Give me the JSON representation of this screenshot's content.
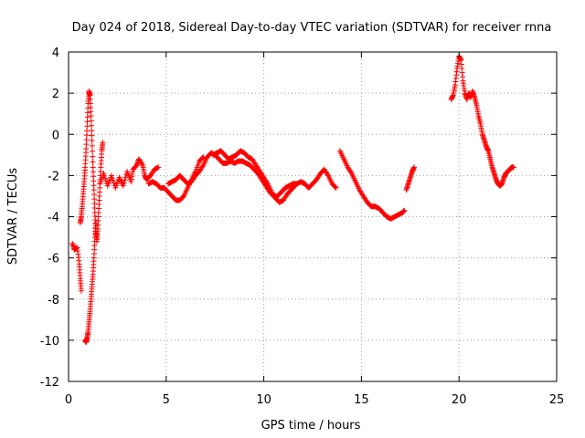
{
  "chart_data": {
    "type": "scatter",
    "title": "Day 024 of 2018, Sidereal Day-to-day VTEC variation (SDTVAR) for receiver rnna",
    "xlabel": "GPS time / hours",
    "ylabel": "SDTVAR / TECUs",
    "xlim": [
      0,
      25
    ],
    "ylim": [
      -12,
      4
    ],
    "xticks": [
      0,
      5,
      10,
      15,
      20,
      25
    ],
    "yticks": [
      4,
      2,
      0,
      -2,
      -4,
      -6,
      -8,
      -10,
      -12
    ],
    "grid": true,
    "marker": "+",
    "marker_color": "#ff0000",
    "series": [
      {
        "name": "SDTVAR",
        "segments": [
          [
            [
              0.2,
              -5.3
            ],
            [
              0.3,
              -5.6
            ],
            [
              0.45,
              -5.5
            ],
            [
              0.55,
              -6.3
            ],
            [
              0.6,
              -7.0
            ],
            [
              0.65,
              -7.6
            ]
          ],
          [
            [
              0.6,
              -4.3
            ],
            [
              0.65,
              -4.0
            ],
            [
              0.7,
              -3.5
            ],
            [
              0.75,
              -2.9
            ],
            [
              0.8,
              -2.3
            ],
            [
              0.85,
              -1.6
            ],
            [
              0.9,
              -0.7
            ],
            [
              0.95,
              0.4
            ],
            [
              1.0,
              1.5
            ],
            [
              1.05,
              2.1
            ],
            [
              1.1,
              1.9
            ],
            [
              1.15,
              0.9
            ],
            [
              1.2,
              -0.3
            ],
            [
              1.25,
              -1.6
            ],
            [
              1.3,
              -2.7
            ],
            [
              1.35,
              -3.8
            ],
            [
              1.4,
              -4.7
            ],
            [
              1.45,
              -5.2
            ],
            [
              1.5,
              -4.6
            ],
            [
              1.55,
              -3.6
            ],
            [
              1.6,
              -2.6
            ],
            [
              1.65,
              -1.6
            ],
            [
              1.7,
              -0.8
            ],
            [
              1.75,
              -0.4
            ]
          ],
          [
            [
              0.85,
              -10.0
            ],
            [
              0.9,
              -10.1
            ],
            [
              0.95,
              -9.9
            ],
            [
              1.0,
              -9.6
            ],
            [
              1.05,
              -9.1
            ],
            [
              1.1,
              -8.6
            ],
            [
              1.15,
              -8.0
            ],
            [
              1.2,
              -7.4
            ],
            [
              1.25,
              -6.8
            ],
            [
              1.3,
              -6.0
            ],
            [
              1.35,
              -5.0
            ],
            [
              1.4,
              -4.3
            ]
          ],
          [
            [
              1.6,
              -2.4
            ],
            [
              1.8,
              -1.9
            ],
            [
              2.0,
              -2.5
            ],
            [
              2.2,
              -2.0
            ],
            [
              2.4,
              -2.6
            ],
            [
              2.6,
              -2.1
            ],
            [
              2.8,
              -2.5
            ],
            [
              3.0,
              -1.8
            ],
            [
              3.2,
              -2.3
            ],
            [
              3.3,
              -1.7
            ],
            [
              3.5,
              -1.5
            ],
            [
              3.6,
              -1.2
            ],
            [
              3.8,
              -1.5
            ],
            [
              3.9,
              -2.0
            ],
            [
              4.0,
              -2.2
            ],
            [
              4.2,
              -2.0
            ],
            [
              4.4,
              -1.7
            ],
            [
              4.6,
              -1.6
            ]
          ],
          [
            [
              4.1,
              -2.4
            ],
            [
              4.3,
              -2.3
            ],
            [
              4.5,
              -2.4
            ],
            [
              4.7,
              -2.6
            ],
            [
              4.9,
              -2.6
            ],
            [
              5.1,
              -2.8
            ],
            [
              5.3,
              -3.0
            ],
            [
              5.5,
              -3.2
            ],
            [
              5.7,
              -3.2
            ],
            [
              5.9,
              -3.0
            ],
            [
              6.1,
              -2.6
            ],
            [
              6.3,
              -2.2
            ],
            [
              6.5,
              -1.8
            ],
            [
              6.7,
              -1.3
            ],
            [
              6.9,
              -1.1
            ]
          ],
          [
            [
              5.1,
              -2.4
            ],
            [
              5.3,
              -2.3
            ],
            [
              5.5,
              -2.2
            ],
            [
              5.7,
              -2.0
            ],
            [
              5.9,
              -2.2
            ],
            [
              6.1,
              -2.4
            ],
            [
              6.3,
              -2.3
            ],
            [
              6.5,
              -2.0
            ],
            [
              6.7,
              -1.8
            ],
            [
              6.9,
              -1.5
            ],
            [
              7.1,
              -1.1
            ],
            [
              7.3,
              -0.9
            ],
            [
              7.5,
              -1.0
            ],
            [
              7.7,
              -1.2
            ],
            [
              7.9,
              -1.4
            ],
            [
              8.1,
              -1.4
            ],
            [
              8.3,
              -1.3
            ],
            [
              8.5,
              -1.4
            ],
            [
              8.7,
              -1.3
            ],
            [
              8.9,
              -1.3
            ],
            [
              9.1,
              -1.4
            ],
            [
              9.3,
              -1.5
            ],
            [
              9.5,
              -1.7
            ],
            [
              9.7,
              -1.9
            ],
            [
              9.9,
              -2.2
            ],
            [
              10.1,
              -2.5
            ],
            [
              10.3,
              -2.8
            ],
            [
              10.5,
              -3.0
            ],
            [
              10.7,
              -3.0
            ],
            [
              10.9,
              -2.8
            ],
            [
              11.1,
              -2.6
            ],
            [
              11.3,
              -2.5
            ],
            [
              11.5,
              -2.4
            ],
            [
              11.7,
              -2.4
            ],
            [
              11.9,
              -2.3
            ],
            [
              12.1,
              -2.4
            ],
            [
              12.3,
              -2.6
            ],
            [
              12.5,
              -2.4
            ],
            [
              12.7,
              -2.2
            ],
            [
              12.9,
              -1.9
            ],
            [
              13.1,
              -1.7
            ],
            [
              13.3,
              -2.0
            ],
            [
              13.5,
              -2.4
            ],
            [
              13.7,
              -2.6
            ]
          ],
          [
            [
              7.4,
              -1.0
            ],
            [
              7.6,
              -0.9
            ],
            [
              7.8,
              -0.8
            ],
            [
              8.0,
              -1.0
            ],
            [
              8.2,
              -1.2
            ],
            [
              8.4,
              -1.1
            ],
            [
              8.6,
              -1.0
            ],
            [
              8.8,
              -0.8
            ],
            [
              9.0,
              -0.9
            ],
            [
              9.2,
              -1.1
            ],
            [
              9.4,
              -1.2
            ],
            [
              9.6,
              -1.5
            ],
            [
              9.8,
              -1.8
            ],
            [
              10.0,
              -2.1
            ],
            [
              10.2,
              -2.4
            ],
            [
              10.4,
              -2.8
            ],
            [
              10.6,
              -3.1
            ],
            [
              10.8,
              -3.3
            ],
            [
              11.0,
              -3.2
            ],
            [
              11.2,
              -2.9
            ],
            [
              11.4,
              -2.7
            ],
            [
              11.6,
              -2.5
            ]
          ],
          [
            [
              13.9,
              -0.8
            ],
            [
              14.1,
              -1.2
            ],
            [
              14.3,
              -1.6
            ],
            [
              14.5,
              -1.9
            ],
            [
              14.7,
              -2.3
            ],
            [
              14.9,
              -2.7
            ],
            [
              15.1,
              -3.0
            ],
            [
              15.3,
              -3.3
            ],
            [
              15.5,
              -3.5
            ],
            [
              15.7,
              -3.5
            ],
            [
              15.9,
              -3.6
            ],
            [
              16.1,
              -3.8
            ],
            [
              16.3,
              -4.0
            ],
            [
              16.5,
              -4.1
            ],
            [
              16.7,
              -4.0
            ],
            [
              16.9,
              -3.9
            ],
            [
              17.1,
              -3.8
            ],
            [
              17.2,
              -3.7
            ]
          ],
          [
            [
              17.3,
              -2.7
            ],
            [
              17.4,
              -2.4
            ],
            [
              17.5,
              -2.1
            ],
            [
              17.6,
              -1.8
            ],
            [
              17.7,
              -1.6
            ]
          ],
          [
            [
              19.6,
              1.7
            ],
            [
              19.7,
              1.9
            ],
            [
              19.8,
              2.4
            ],
            [
              19.9,
              3.2
            ],
            [
              20.0,
              3.8
            ],
            [
              20.1,
              3.6
            ],
            [
              20.2,
              2.6
            ],
            [
              20.3,
              2.0
            ],
            [
              20.4,
              1.7
            ],
            [
              20.5,
              2.0
            ],
            [
              20.6,
              1.8
            ],
            [
              20.7,
              2.1
            ],
            [
              20.8,
              1.8
            ],
            [
              20.9,
              1.4
            ],
            [
              21.0,
              0.9
            ],
            [
              21.1,
              0.5
            ],
            [
              21.2,
              0.0
            ],
            [
              21.3,
              -0.3
            ],
            [
              21.4,
              -0.6
            ],
            [
              21.5,
              -0.8
            ],
            [
              21.6,
              -1.2
            ],
            [
              21.7,
              -1.6
            ],
            [
              21.8,
              -1.9
            ],
            [
              21.9,
              -2.2
            ],
            [
              22.0,
              -2.4
            ],
            [
              22.1,
              -2.5
            ],
            [
              22.2,
              -2.4
            ],
            [
              22.3,
              -2.1
            ],
            [
              22.4,
              -1.9
            ],
            [
              22.5,
              -1.8
            ],
            [
              22.6,
              -1.7
            ],
            [
              22.7,
              -1.6
            ],
            [
              22.8,
              -1.6
            ]
          ]
        ]
      }
    ]
  }
}
